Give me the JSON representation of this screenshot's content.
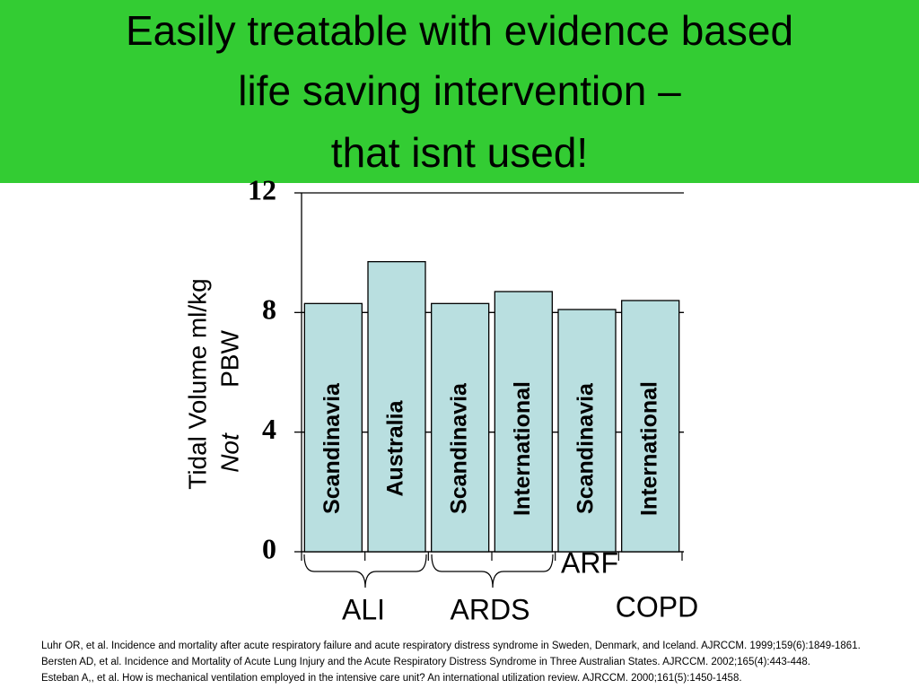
{
  "chart_data": {
    "type": "bar",
    "title_lines": [
      "Easily treatable with evidence based",
      "life saving intervention –",
      "that isnt used!"
    ],
    "y_label": {
      "line1": "Tidal Volume ml/kg",
      "emphasis": "Not",
      "line2": "PBW"
    },
    "categories": [
      "Scandinavia",
      "Australia",
      "Scandinavia",
      "International",
      "Scandinavia",
      "International"
    ],
    "values": [
      8.3,
      9.7,
      8.3,
      8.7,
      8.1,
      8.4
    ],
    "color": "#b9dfe0",
    "ylim": [
      0,
      12
    ],
    "yticks": [
      0,
      4,
      8,
      12
    ],
    "grid": true,
    "groups": [
      "ALI",
      "ARDS",
      "ARF",
      "COPD"
    ],
    "references": [
      "Luhr OR, et al. Incidence and mortality after acute respiratory failure and acute respiratory distress syndrome in Sweden, Denmark, and Iceland. AJRCCM. 1999;159(6):1849-1861.",
      "Bersten AD, et al. Incidence and Mortality of Acute Lung Injury and the Acute Respiratory Distress Syndrome in Three Australian States. AJRCCM. 2002;165(4):443-448.",
      "Esteban A,, et al. How is mechanical ventilation employed in the intensive care unit? An international utilization review. AJRCCM. 2000;161(5):1450-1458."
    ]
  }
}
